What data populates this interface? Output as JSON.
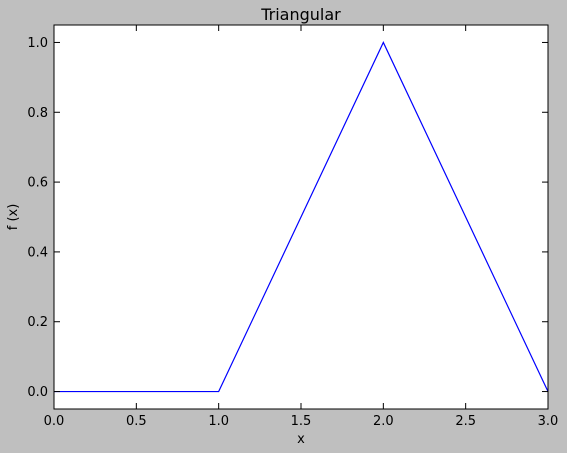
{
  "chart_data": {
    "type": "line",
    "title": "Triangular",
    "xlabel": "x",
    "ylabel": "f (x)",
    "xlim": [
      0.0,
      3.0
    ],
    "ylim": [
      -0.05,
      1.05
    ],
    "xticks": [
      0.0,
      0.5,
      1.0,
      1.5,
      2.0,
      2.5,
      3.0
    ],
    "xtick_labels": [
      "0.0",
      "0.5",
      "1.0",
      "1.5",
      "2.0",
      "2.5",
      "3.0"
    ],
    "yticks": [
      0.0,
      0.2,
      0.4,
      0.6,
      0.8,
      1.0
    ],
    "ytick_labels": [
      "0.0",
      "0.2",
      "0.4",
      "0.6",
      "0.8",
      "1.0"
    ],
    "grid": false,
    "legend": "none",
    "series": [
      {
        "color": "#0000ff",
        "x": [
          0.0,
          1.0,
          2.0,
          3.0
        ],
        "y": [
          0.0,
          0.0,
          1.0,
          0.0
        ]
      }
    ],
    "colors": {
      "figure_background": "#bfbfbf",
      "axes_background": "#ffffff",
      "line": "#0000ff"
    }
  }
}
